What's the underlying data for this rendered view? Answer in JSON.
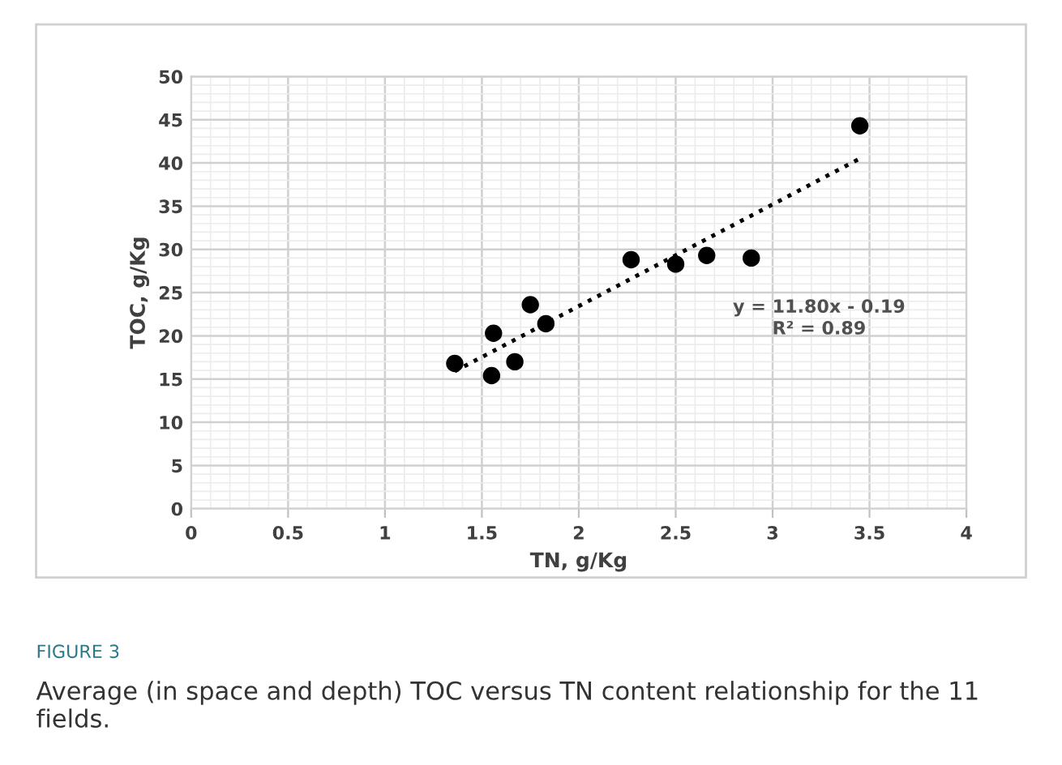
{
  "chart_data": {
    "type": "scatter",
    "xlabel": "TN, g/Kg",
    "ylabel": "TOC, g/Kg",
    "xlim": [
      0,
      4
    ],
    "xticks": [
      0,
      0.5,
      1,
      1.5,
      2,
      2.5,
      3,
      3.5,
      4
    ],
    "ylim": [
      0,
      50
    ],
    "yticks": [
      0,
      5,
      10,
      15,
      20,
      25,
      30,
      35,
      40,
      45,
      50
    ],
    "grid": true,
    "series": [
      {
        "type": "scatter",
        "color": "#000000",
        "marker": "circle",
        "x": [
          1.36,
          1.55,
          1.56,
          1.67,
          1.75,
          1.83,
          2.27,
          2.5,
          2.66,
          2.89,
          3.45
        ],
        "values": [
          16.8,
          15.4,
          20.3,
          17.0,
          23.6,
          21.4,
          28.8,
          28.3,
          29.3,
          29.0,
          44.3
        ]
      },
      {
        "type": "line",
        "color": "#000000",
        "line_style": "dotted",
        "marker": "none",
        "x": [
          1.36,
          3.45
        ],
        "values": [
          15.9,
          40.5
        ]
      }
    ],
    "annotations": [
      "y = 11.80x - 0.19\nR² = 0.89",
      "FIGURE 3",
      "Average (in space and depth) TOC versus TN content relationship for the 11 fields."
    ]
  }
}
